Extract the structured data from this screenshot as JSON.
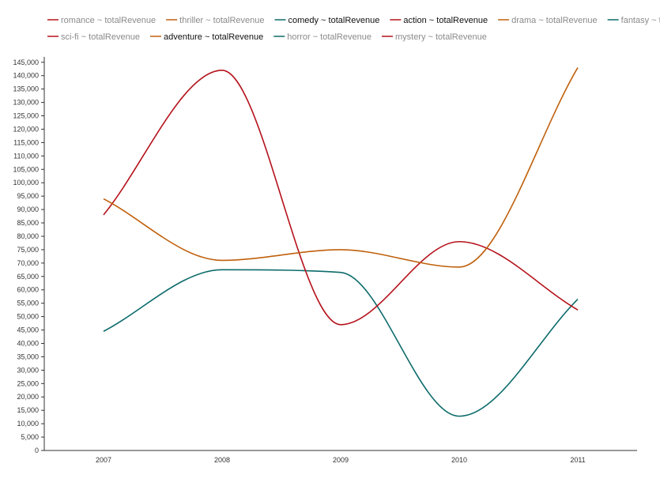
{
  "chart_data": {
    "type": "line",
    "title": "",
    "xlabel": "",
    "ylabel": "",
    "categories": [
      "2007",
      "2008",
      "2009",
      "2010",
      "2011"
    ],
    "ylim": [
      0,
      147000
    ],
    "yticks": [
      0,
      5000,
      10000,
      15000,
      20000,
      25000,
      30000,
      35000,
      40000,
      45000,
      50000,
      55000,
      60000,
      65000,
      70000,
      75000,
      80000,
      85000,
      90000,
      95000,
      100000,
      105000,
      110000,
      115000,
      120000,
      125000,
      130000,
      135000,
      140000,
      145000
    ],
    "grid": false,
    "legend_position": "top",
    "series": [
      {
        "name": "romance ~ totalRevenue",
        "color": "#b5121b",
        "active": false,
        "values": null
      },
      {
        "name": "thriller ~ totalRevenue",
        "color": "#c0600c",
        "active": false,
        "values": null
      },
      {
        "name": "comedy ~ totalRevenue",
        "color": "#0d6b6b",
        "active": true,
        "values": [
          44500,
          67500,
          66500,
          12800,
          56500
        ]
      },
      {
        "name": "action ~ totalRevenue",
        "color": "#b5121b",
        "active": true,
        "values": [
          88000,
          142000,
          47000,
          78000,
          52500
        ]
      },
      {
        "name": "drama ~ totalRevenue",
        "color": "#c0600c",
        "active": false,
        "values": null
      },
      {
        "name": "fantasy ~ totalRevenue",
        "color": "#0d6b6b",
        "active": false,
        "values": null
      },
      {
        "name": "sci-fi ~ totalRevenue",
        "color": "#b5121b",
        "active": false,
        "values": null
      },
      {
        "name": "adventure ~ totalRevenue",
        "color": "#c0600c",
        "active": true,
        "values": [
          94000,
          71000,
          75000,
          68500,
          143000
        ]
      },
      {
        "name": "horror ~ totalRevenue",
        "color": "#0d6b6b",
        "active": false,
        "values": null
      },
      {
        "name": "mystery ~ totalRevenue",
        "color": "#b5121b",
        "active": false,
        "values": null
      }
    ]
  }
}
